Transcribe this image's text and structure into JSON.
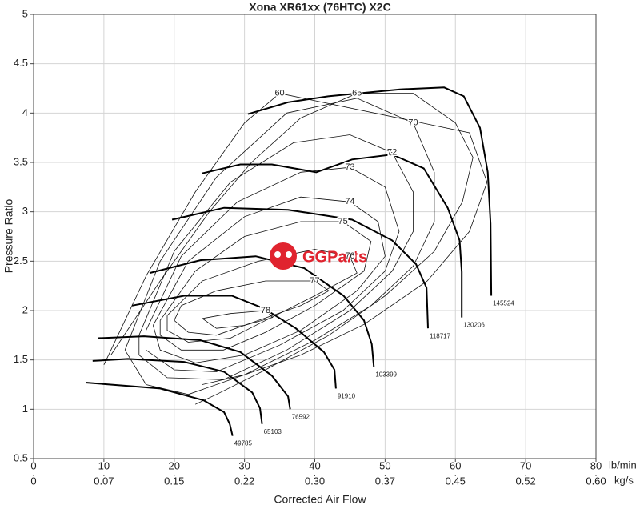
{
  "chart_data": {
    "type": "line",
    "title": "Xona XR61xx (76HTC) X2C",
    "x_label": "Corrected Air Flow",
    "y_label": "Pressure Ratio",
    "x_unit": "lb/min",
    "x2_unit": "kg/s",
    "watermark": "GGParts",
    "xlim": [
      0,
      80
    ],
    "xticks": [
      0,
      10,
      20,
      30,
      40,
      50,
      60,
      70,
      80
    ],
    "x2lim": [
      0,
      0.6048
    ],
    "x2ticks": [
      0,
      {
        "value": 0.0756,
        "label": "0.07"
      },
      {
        "value": 0.1512,
        "label": "0.15"
      },
      {
        "value": 0.2268,
        "label": "0.22"
      },
      {
        "value": 0.3024,
        "label": "0.30"
      },
      {
        "value": 0.378,
        "label": "0.37"
      },
      {
        "value": 0.4536,
        "label": "0.45"
      },
      {
        "value": 0.5292,
        "label": "0.52"
      },
      {
        "value": 0.6048,
        "label": "0.60"
      }
    ],
    "ylim": [
      0.5,
      5
    ],
    "yticks": [
      0.5,
      1,
      1.5,
      2,
      2.5,
      3,
      3.5,
      4,
      4.5,
      5
    ],
    "grid": true,
    "color": "#000000",
    "speed_lines": [
      {
        "name": "49785",
        "x": [
          7.4,
          18.0,
          24.2,
          27.1,
          27.9,
          28.3
        ],
        "values": [
          1.27,
          1.21,
          1.09,
          0.97,
          0.85,
          0.73
        ]
      },
      {
        "name": "65103",
        "x": [
          8.4,
          13.4,
          21.4,
          27.1,
          31.1,
          32.2,
          32.5
        ],
        "values": [
          1.49,
          1.51,
          1.48,
          1.38,
          1.17,
          1.01,
          0.85
        ]
      },
      {
        "name": "76592",
        "x": [
          9.2,
          15.7,
          23.7,
          29.4,
          33.9,
          36.2,
          36.5
        ],
        "values": [
          1.72,
          1.74,
          1.7,
          1.58,
          1.34,
          1.13,
          1.0
        ]
      },
      {
        "name": "91910",
        "x": [
          14.0,
          21.4,
          28.2,
          32.8,
          37.3,
          41.3,
          42.8,
          43.0
        ],
        "values": [
          2.05,
          2.15,
          2.15,
          2.02,
          1.82,
          1.58,
          1.4,
          1.21
        ]
      },
      {
        "name": "103399",
        "x": [
          16.5,
          23.7,
          31.6,
          38.5,
          44.1,
          47.0,
          48.1,
          48.4
        ],
        "values": [
          2.38,
          2.51,
          2.55,
          2.43,
          2.15,
          1.9,
          1.66,
          1.43
        ]
      },
      {
        "name": "118717",
        "x": [
          19.7,
          27.1,
          36.2,
          45.3,
          51.0,
          54.4,
          55.9,
          56.1
        ],
        "values": [
          2.92,
          3.04,
          3.02,
          2.92,
          2.71,
          2.47,
          2.23,
          1.82
        ]
      },
      {
        "name": "130206",
        "x": [
          24.0,
          29.4,
          33.9,
          40.2,
          45.3,
          51.0,
          55.5,
          58.9,
          60.6,
          60.9,
          60.9
        ],
        "values": [
          3.39,
          3.48,
          3.48,
          3.4,
          3.53,
          3.58,
          3.44,
          3.04,
          2.71,
          2.39,
          1.93
        ]
      },
      {
        "name": "145524",
        "x": [
          30.5,
          36.2,
          41.9,
          52.1,
          58.4,
          61.2,
          63.5,
          64.6,
          65.0,
          65.1
        ],
        "values": [
          3.99,
          4.11,
          4.17,
          4.24,
          4.26,
          4.17,
          3.85,
          3.4,
          2.88,
          2.15
        ]
      }
    ],
    "efficiency_contours": [
      {
        "name": "78",
        "x": [
          24,
          28,
          33,
          34,
          30,
          26,
          24
        ],
        "values": [
          1.92,
          1.97,
          2.0,
          1.93,
          1.85,
          1.82,
          1.92
        ]
      },
      {
        "name": "77",
        "x": [
          21,
          26,
          33,
          40,
          42,
          38,
          32,
          26,
          22,
          20,
          21
        ],
        "values": [
          2.05,
          2.2,
          2.3,
          2.3,
          2.2,
          2.05,
          1.9,
          1.75,
          1.78,
          1.9,
          2.05
        ]
      },
      {
        "name": "76",
        "x": [
          19,
          24,
          32,
          40,
          45,
          46,
          40,
          33,
          28,
          22,
          19,
          19
        ],
        "values": [
          1.95,
          2.3,
          2.5,
          2.62,
          2.55,
          2.38,
          2.15,
          1.9,
          1.72,
          1.68,
          1.8,
          1.95
        ]
      },
      {
        "name": "75",
        "x": [
          18,
          23,
          30,
          38,
          44,
          48,
          47,
          40,
          33,
          27,
          21,
          18,
          18
        ],
        "values": [
          1.9,
          2.4,
          2.75,
          2.9,
          2.9,
          2.7,
          2.4,
          2.05,
          1.78,
          1.6,
          1.6,
          1.75,
          1.9
        ]
      },
      {
        "name": "74",
        "x": [
          17,
          22,
          30,
          38,
          45,
          49,
          50,
          46,
          38,
          30,
          23,
          18,
          17
        ],
        "values": [
          1.85,
          2.5,
          2.95,
          3.15,
          3.1,
          2.9,
          2.55,
          2.2,
          1.8,
          1.55,
          1.47,
          1.6,
          1.85
        ]
      },
      {
        "name": "73",
        "x": [
          16,
          21,
          29,
          38,
          45,
          50,
          52,
          50,
          44,
          35,
          26,
          20,
          16,
          16
        ],
        "values": [
          1.8,
          2.55,
          3.1,
          3.4,
          3.45,
          3.25,
          2.8,
          2.4,
          2.0,
          1.65,
          1.38,
          1.4,
          1.6,
          1.8
        ]
      },
      {
        "name": "72",
        "x": [
          15,
          20,
          28,
          37,
          45,
          51,
          54,
          54,
          51,
          45,
          36,
          27,
          19,
          15,
          15
        ],
        "values": [
          1.75,
          2.6,
          3.3,
          3.7,
          3.78,
          3.6,
          3.2,
          2.8,
          2.4,
          2.0,
          1.6,
          1.3,
          1.32,
          1.55,
          1.75
        ]
      },
      {
        "name": "70",
        "x": [
          13,
          18,
          26,
          36,
          46,
          54,
          57,
          57,
          54,
          48,
          40,
          30,
          22,
          16,
          13
        ],
        "values": [
          1.6,
          2.5,
          3.35,
          4.0,
          4.15,
          3.9,
          3.4,
          2.9,
          2.45,
          2.05,
          1.7,
          1.35,
          1.15,
          1.25,
          1.6
        ]
      },
      {
        "name": "65",
        "x": [
          11,
          18,
          25,
          31,
          38,
          46,
          54,
          60,
          62.5,
          61,
          57,
          50,
          42,
          33,
          26,
          23
        ],
        "values": [
          1.55,
          2.3,
          3.0,
          3.5,
          3.95,
          4.2,
          4.2,
          3.9,
          3.55,
          3.1,
          2.6,
          2.15,
          1.75,
          1.4,
          1.15,
          1.05
        ]
      },
      {
        "name": "60",
        "x": [
          10,
          16,
          23,
          30,
          35,
          62,
          64.5,
          62,
          56,
          47,
          38,
          30,
          24
        ],
        "values": [
          1.45,
          2.35,
          3.2,
          3.9,
          4.2,
          3.8,
          3.3,
          2.8,
          2.3,
          1.86,
          1.55,
          1.35,
          1.25
        ]
      }
    ]
  }
}
